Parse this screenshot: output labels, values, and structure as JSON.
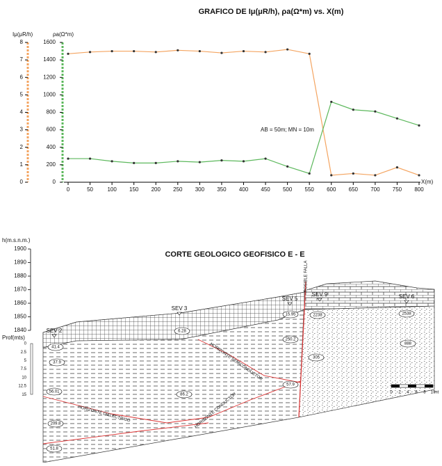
{
  "chart_data": {
    "type": "line",
    "title": "GRAFICO DE Iμ(μR/h), ρa(Ω*m) vs. X(m)",
    "ylabel": "Iμ(μR/h)",
    "y2label": "ρa(Ω*m)",
    "xlabel": "X(m)",
    "annotation": "AB = 50m; MN = 10m",
    "x": [
      0,
      50,
      100,
      150,
      200,
      250,
      300,
      350,
      400,
      450,
      500,
      550,
      600,
      650,
      700,
      750,
      800
    ],
    "xlim": [
      0,
      800
    ],
    "xticks": [
      0,
      50,
      100,
      150,
      200,
      250,
      300,
      350,
      400,
      450,
      500,
      550,
      600,
      650,
      700,
      750,
      800
    ],
    "ylim": [
      0,
      8
    ],
    "yticks": [
      0,
      1,
      2,
      3,
      4,
      5,
      6,
      7,
      8
    ],
    "y2lim": [
      0,
      1600
    ],
    "y2ticks": [
      0,
      200,
      400,
      600,
      800,
      1000,
      1200,
      1400,
      1600
    ],
    "series": [
      {
        "color": "#f4a460",
        "values": [
          7.35,
          7.45,
          7.5,
          7.5,
          7.45,
          7.55,
          7.5,
          7.4,
          7.5,
          7.45,
          7.6,
          7.35,
          0.4,
          0.5,
          0.4,
          0.85,
          0.4
        ]
      },
      {
        "color": "#5cb85c",
        "axis": "y2",
        "values": [
          270,
          270,
          240,
          220,
          220,
          240,
          230,
          250,
          240,
          270,
          180,
          100,
          920,
          830,
          810,
          730,
          650
        ]
      }
    ]
  },
  "section": {
    "title": "CORTE GEOLOGICO GEOFISICO E - E",
    "elevation_label": "h(m.s.n.m.)",
    "elevation_ticks": [
      "1900",
      "1890",
      "1880",
      "1870",
      "1860",
      "1850",
      "1840"
    ],
    "depth_label": "Prof(mts)",
    "depth_ticks": [
      "0",
      "2.5",
      "5",
      "7.5",
      "10",
      "12.5",
      "15"
    ],
    "fault": "POSIBLE FALLA",
    "sevs": [
      "SEV 2",
      "SEV 3",
      "SEV 5",
      "SEV 9",
      "SEV 6"
    ],
    "resistivities": [
      "41.4",
      "37.9",
      "56.01",
      "209.8",
      "51.8",
      "6.28",
      "86.2",
      "15.95",
      "250.2",
      "57.9",
      "2238",
      "305",
      "2538",
      "888"
    ],
    "horizons": [
      "HORIZONTE DIELECTRICO",
      "HORIZONTE SEMICONDUCTOR",
      "HORIZONTE CONDUCTOR"
    ],
    "scale": [
      "0",
      "2",
      "4",
      "6",
      "8",
      "10",
      "mt"
    ]
  }
}
